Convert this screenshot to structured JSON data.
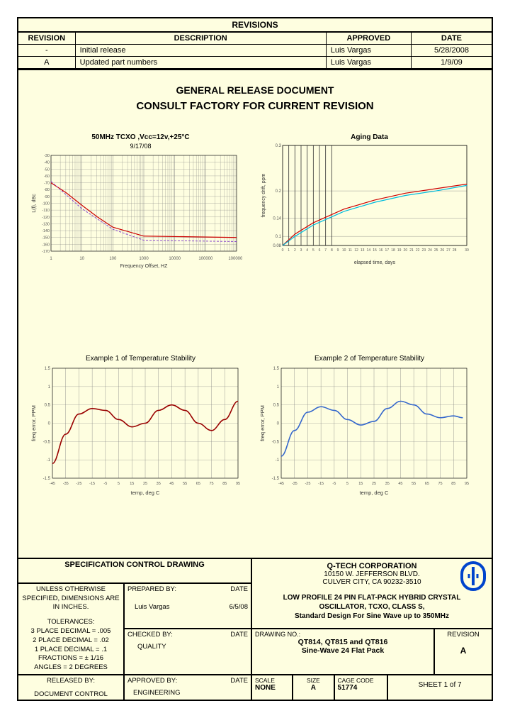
{
  "revisions": {
    "header": "REVISIONS",
    "columns": [
      "REVISION",
      "DESCRIPTION",
      "APPROVED",
      "DATE"
    ],
    "rows": [
      [
        "-",
        "Initial release",
        "Luis Vargas",
        "5/28/2008"
      ],
      [
        "A",
        "Updated part numbers",
        "Luis Vargas",
        "1/9/09"
      ]
    ]
  },
  "doc": {
    "title1": "GENERAL RELEASE DOCUMENT",
    "title2": "CONSULT FACTORY FOR CURRENT REVISION"
  },
  "chart1": {
    "title": "50MHz TCXO ,Vcc=12v,+25°C",
    "subtitle": "9/17/08",
    "xlabel": "Frequency Offset, HZ",
    "ylabel": "L(f), dBc",
    "xticks": [
      "1",
      "10",
      "100",
      "1000",
      "10000",
      "100000",
      "1000000"
    ],
    "yticks": [
      "-30",
      "-40",
      "-50",
      "-60",
      "-70",
      "-80",
      "-90",
      "-100",
      "-110",
      "-120",
      "-130",
      "-140",
      "-150",
      "-160",
      "-170"
    ],
    "ylim": [
      -170,
      -30
    ],
    "series": [
      {
        "color": "#cc0000",
        "width": 1.2,
        "points": [
          [
            0,
            -70
          ],
          [
            0.5,
            -85
          ],
          [
            1,
            -103
          ],
          [
            1.5,
            -120
          ],
          [
            2,
            -135
          ],
          [
            3,
            -148
          ],
          [
            6,
            -150
          ]
        ]
      },
      {
        "color": "#8844cc",
        "width": 1,
        "dash": "3,2",
        "points": [
          [
            0,
            -68
          ],
          [
            0.5,
            -88
          ],
          [
            1,
            -108
          ],
          [
            2,
            -138
          ],
          [
            3,
            -154
          ],
          [
            6,
            -156
          ]
        ]
      }
    ],
    "bg": "#fefee0",
    "grid": "#808080"
  },
  "chart2": {
    "title": "Aging Data",
    "xlabel": "elapsed time, days",
    "ylabel": "frequency drift, ppm",
    "xticks": [
      "0",
      "1",
      "2",
      "3",
      "4",
      "5",
      "6",
      "7",
      "8",
      "9",
      "10",
      "11",
      "12",
      "13",
      "14",
      "15",
      "16",
      "17",
      "18",
      "19",
      "20",
      "21",
      "22",
      "23",
      "24",
      "25",
      "26",
      "27",
      "28",
      "30"
    ],
    "yticks": [
      "0.08",
      "0.1",
      "0.14",
      "0.2",
      "0.3"
    ],
    "ylim": [
      0.08,
      0.3
    ],
    "vlines_at": [
      1,
      2,
      3,
      4,
      5,
      6,
      7,
      8
    ],
    "series": [
      {
        "color": "#cc0000",
        "width": 1.2,
        "points": [
          [
            0,
            0.08
          ],
          [
            2,
            0.105
          ],
          [
            5,
            0.13
          ],
          [
            10,
            0.16
          ],
          [
            15,
            0.18
          ],
          [
            20,
            0.195
          ],
          [
            25,
            0.205
          ],
          [
            30,
            0.215
          ]
        ]
      },
      {
        "color": "#00bbdd",
        "width": 1.2,
        "points": [
          [
            0,
            0.08
          ],
          [
            2,
            0.1
          ],
          [
            5,
            0.125
          ],
          [
            10,
            0.155
          ],
          [
            15,
            0.175
          ],
          [
            20,
            0.19
          ],
          [
            25,
            0.2
          ],
          [
            30,
            0.212
          ]
        ]
      }
    ],
    "bg": "#fefee0",
    "grid": "#808080"
  },
  "chart3": {
    "title": "Example 1 of Temperature Stability",
    "xlabel": "temp, deg C",
    "ylabel": "freq error, PPM",
    "xlim": [
      -45,
      95
    ],
    "ylim": [
      -1.5,
      1.5
    ],
    "xticks": [
      "-45",
      "-35",
      "-25",
      "-15",
      "-5",
      "5",
      "15",
      "25",
      "35",
      "45",
      "55",
      "65",
      "75",
      "85",
      "95"
    ],
    "yticks": [
      "-1.5",
      "-1",
      "-0.5",
      "0",
      "0.5",
      "1",
      "1.5"
    ],
    "series": [
      {
        "color": "#990000",
        "width": 1.6,
        "points": [
          [
            -45,
            -1.1
          ],
          [
            -35,
            -0.3
          ],
          [
            -25,
            0.25
          ],
          [
            -15,
            0.4
          ],
          [
            -5,
            0.35
          ],
          [
            5,
            0.1
          ],
          [
            15,
            -0.1
          ],
          [
            25,
            0
          ],
          [
            35,
            0.35
          ],
          [
            45,
            0.5
          ],
          [
            55,
            0.35
          ],
          [
            65,
            0
          ],
          [
            75,
            -0.2
          ],
          [
            85,
            0.1
          ],
          [
            95,
            0.6
          ]
        ]
      }
    ],
    "bg": "#fefee0",
    "grid": "#808080"
  },
  "chart4": {
    "title": "Example 2 of Temperature Stability",
    "xlabel": "temp, deg C",
    "ylabel": "freq error, PPM",
    "xlim": [
      -45,
      95
    ],
    "ylim": [
      -1.5,
      1.5
    ],
    "xticks": [
      "-45",
      "-35",
      "-25",
      "-15",
      "-5",
      "5",
      "15",
      "25",
      "35",
      "45",
      "55",
      "65",
      "75",
      "85",
      "95"
    ],
    "yticks": [
      "-1.5",
      "-1",
      "-0.5",
      "0",
      "0.5",
      "1",
      "1.5"
    ],
    "series": [
      {
        "color": "#3366cc",
        "width": 1.6,
        "points": [
          [
            -45,
            -0.9
          ],
          [
            -35,
            -0.2
          ],
          [
            -25,
            0.3
          ],
          [
            -15,
            0.45
          ],
          [
            -5,
            0.35
          ],
          [
            5,
            0.1
          ],
          [
            15,
            -0.05
          ],
          [
            25,
            0.05
          ],
          [
            35,
            0.4
          ],
          [
            45,
            0.6
          ],
          [
            55,
            0.5
          ],
          [
            65,
            0.25
          ],
          [
            75,
            0.15
          ],
          [
            85,
            0.2
          ],
          [
            92,
            0.15
          ]
        ]
      }
    ],
    "bg": "#fefee0",
    "grid": "#808080"
  },
  "titleblock": {
    "spec_title": "SPECIFICATION CONTROL DRAWING",
    "tolerances_header": "UNLESS OTHERWISE SPECIFIED, DIMENSIONS ARE IN INCHES.",
    "tolerances_label": "TOLERANCES:",
    "tolerances": [
      "3 PLACE DECIMAL = .005",
      "2 PLACE DECIMAL = .02",
      "1 PLACE DECIMAL = .1",
      "FRACTIONS = ± 1/16",
      "ANGLES = 2 DEGREES"
    ],
    "released_by_lbl": "RELEASED BY:",
    "released_by": "DOCUMENT CONTROL",
    "prepared_by_lbl": "PREPARED BY:",
    "date_lbl": "DATE",
    "prepared_by": "Luis Vargas",
    "prepared_date": "6/5/08",
    "checked_by_lbl": "CHECKED BY:",
    "checked_by": "QUALITY",
    "approved_by_lbl": "APPROVED BY:",
    "approved_by": "ENGINEERING",
    "company": "Q-TECH CORPORATION",
    "addr1": "10150 W. JEFFERSON BLVD.",
    "addr2": "CULVER CITY, CA  90232-3510",
    "product1": "LOW PROFILE 24 PIN FLAT-PACK HYBRID CRYSTAL",
    "product2": "OSCILLATOR, TCXO, CLASS S,",
    "product3": "Standard Design For Sine Wave up to 350MHz",
    "drawing_no_lbl": "DRAWING NO.:",
    "drawing_no1": "QT814, QT815 and QT816",
    "drawing_no2": "Sine-Wave 24 Flat Pack",
    "revision_lbl": "REVISION",
    "revision": "A",
    "scale_lbl": "SCALE",
    "scale": "NONE",
    "size_lbl": "SIZE",
    "size": "A",
    "cage_lbl": "CAGE CODE",
    "cage": "51774",
    "sheet": "SHEET 1 of  7",
    "logo_color": "#0044cc"
  }
}
